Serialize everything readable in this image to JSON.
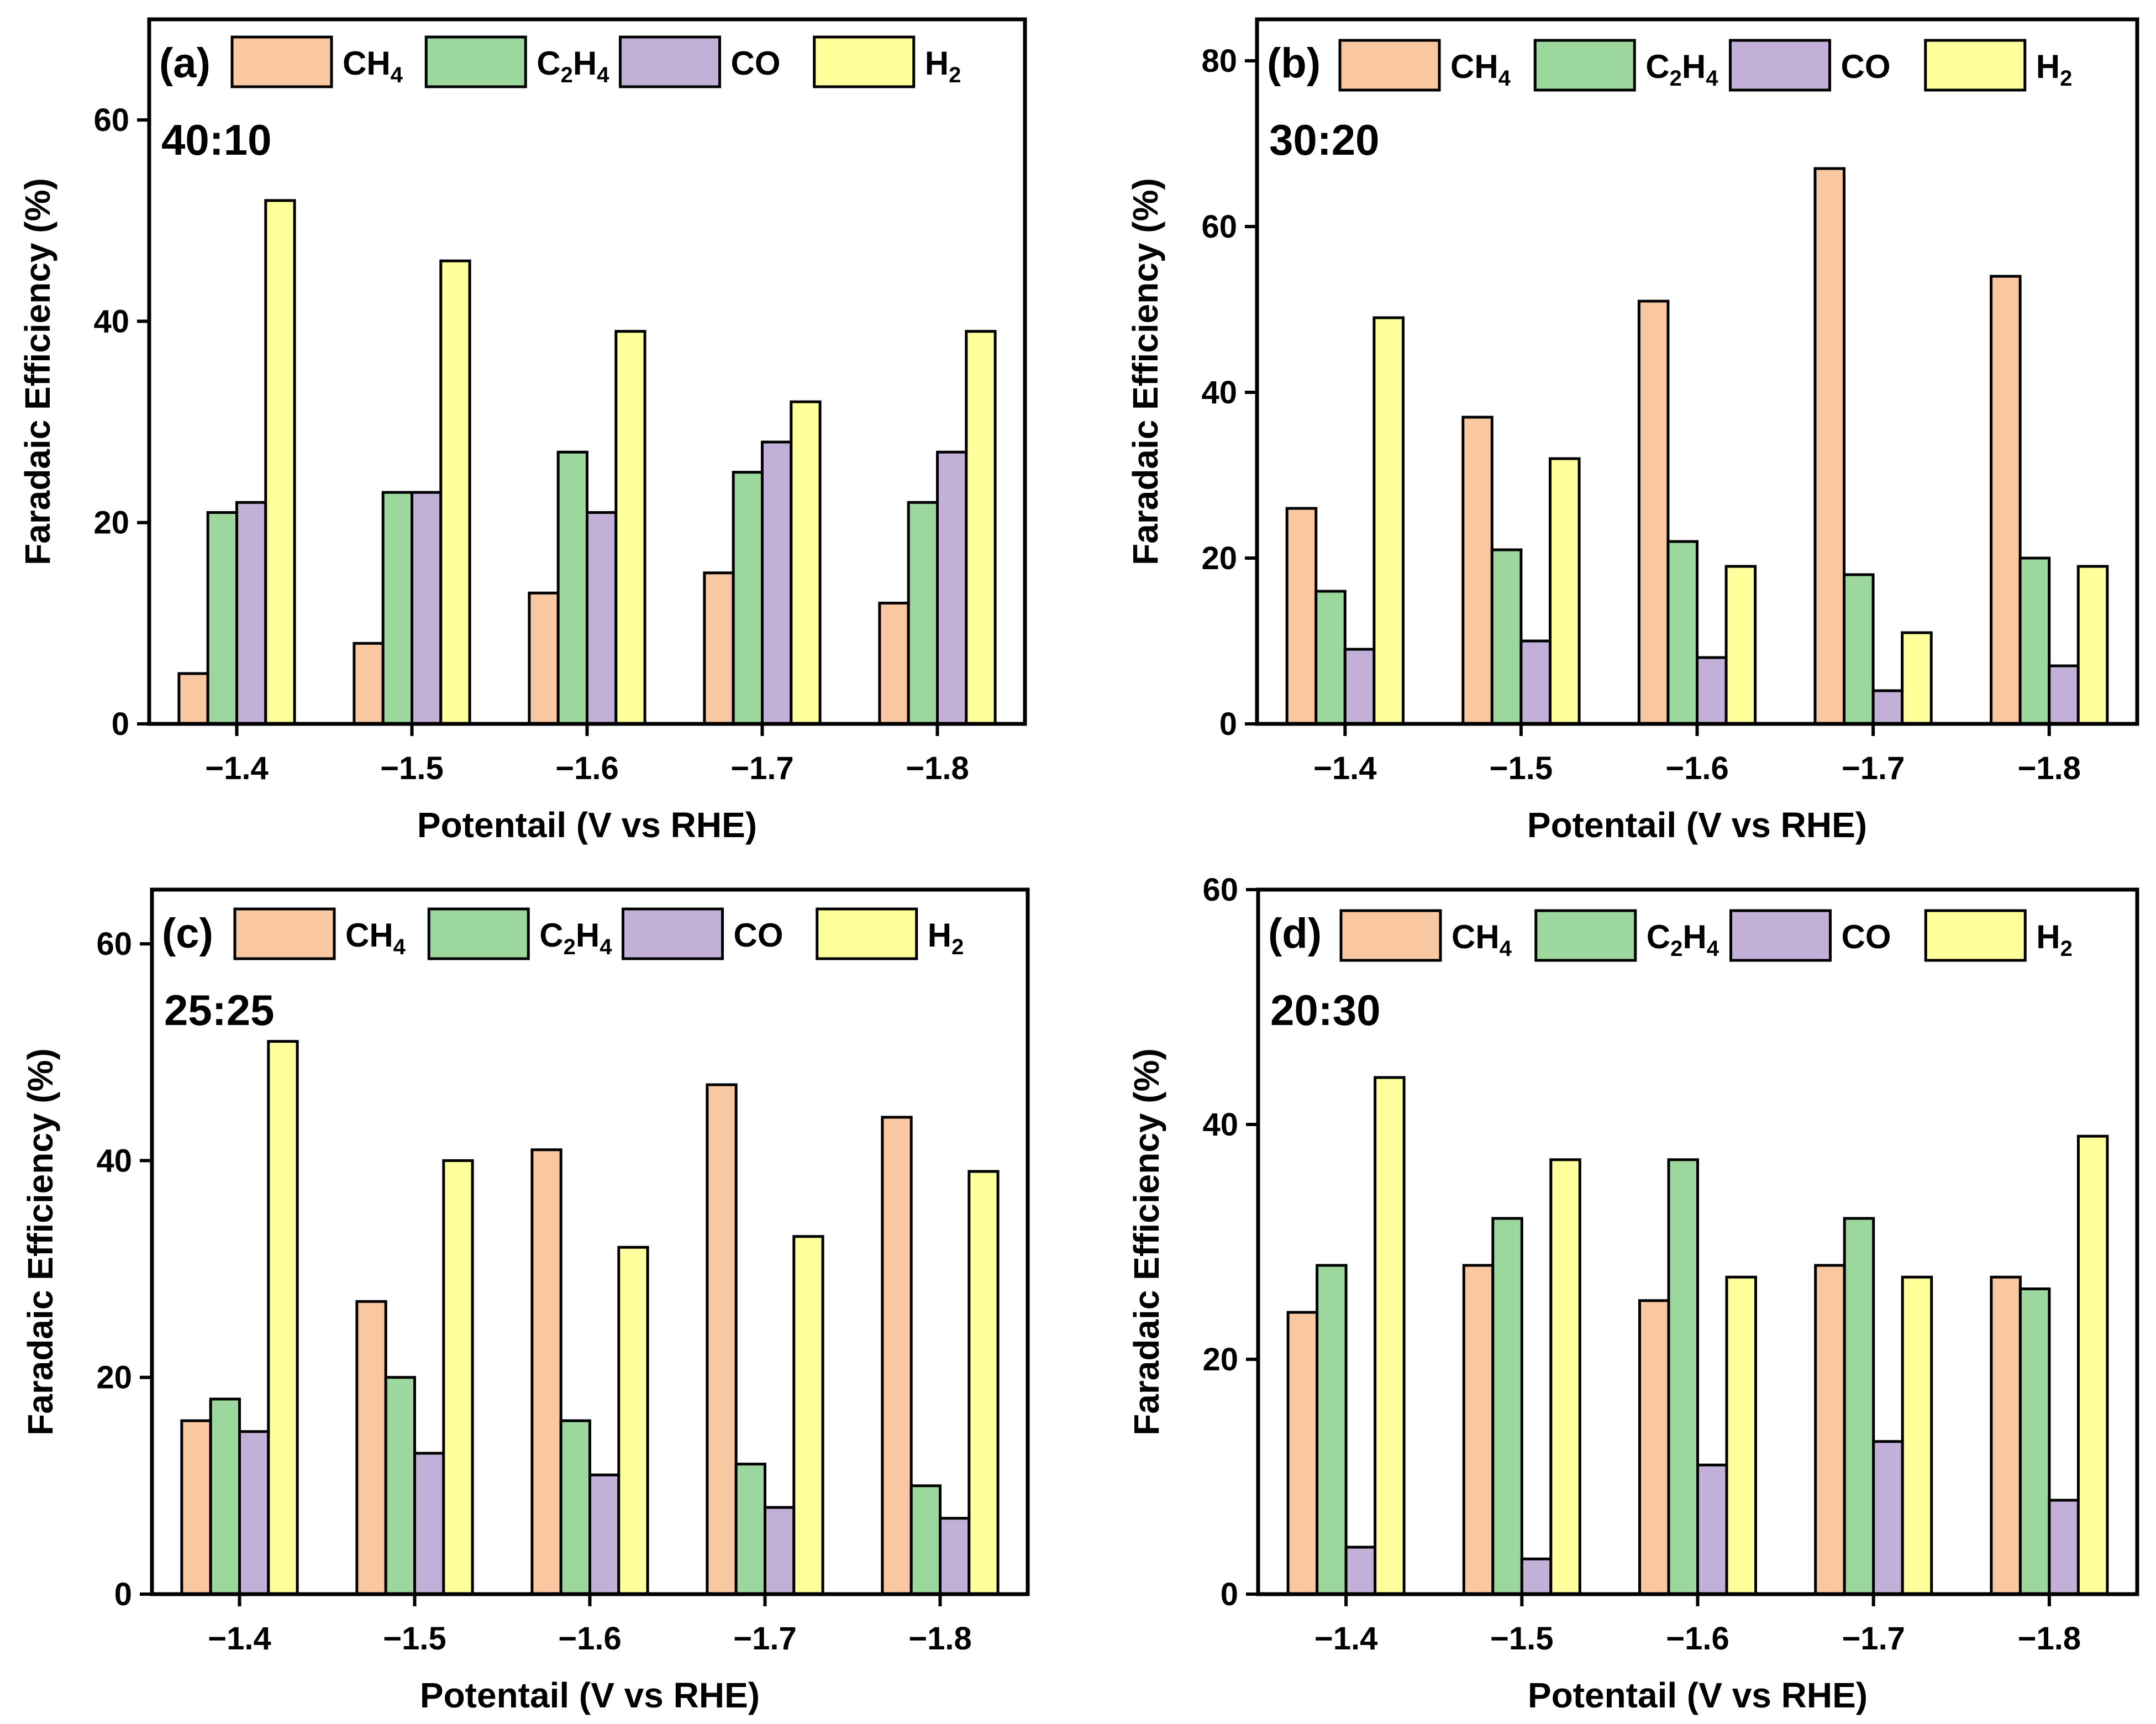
{
  "chart_data": [
    {
      "type": "bar",
      "panel": "(a)",
      "ratio": "40:10",
      "categories": [
        "−1.4",
        "−1.5",
        "−1.6",
        "−1.7",
        "−1.8"
      ],
      "xlabel": "Potentail (V vs RHE)",
      "ylabel": "Faradaic Efficiency (%)",
      "ylim": [
        0,
        70
      ],
      "yticks": [
        "0",
        "20",
        "40",
        "60"
      ],
      "legend_position": "top",
      "series": [
        {
          "name": "CH4",
          "label_base": "CH",
          "label_sub": "4",
          "color": "#FAC8A0",
          "values": [
            5,
            8,
            13,
            15,
            12
          ]
        },
        {
          "name": "C2H4",
          "label_base": "C",
          "label_sub": "2",
          "label_mid": "H",
          "label_sub2": "4",
          "color": "#9CD89E",
          "values": [
            21,
            23,
            27,
            25,
            22
          ]
        },
        {
          "name": "CO",
          "label_base": "CO",
          "color": "#C3B0D8",
          "values": [
            22,
            23,
            21,
            28,
            27
          ]
        },
        {
          "name": "H2",
          "label_base": "H",
          "label_sub": "2",
          "color": "#FFFF9C",
          "values": [
            52,
            46,
            39,
            32,
            39
          ]
        }
      ]
    },
    {
      "type": "bar",
      "panel": "(b)",
      "ratio": "30:20",
      "categories": [
        "−1.4",
        "−1.5",
        "−1.6",
        "−1.7",
        "−1.8"
      ],
      "xlabel": "Potentail (V vs RHE)",
      "ylabel": "Faradaic Efficiency (%)",
      "ylim": [
        0,
        85
      ],
      "yticks": [
        "0",
        "20",
        "40",
        "60",
        "80"
      ],
      "legend_position": "top",
      "series": [
        {
          "name": "CH4",
          "label_base": "CH",
          "label_sub": "4",
          "color": "#FAC8A0",
          "values": [
            26,
            37,
            51,
            67,
            54
          ]
        },
        {
          "name": "C2H4",
          "label_base": "C",
          "label_sub": "2",
          "label_mid": "H",
          "label_sub2": "4",
          "color": "#9CD89E",
          "values": [
            16,
            21,
            22,
            18,
            20
          ]
        },
        {
          "name": "CO",
          "label_base": "CO",
          "color": "#C3B0D8",
          "values": [
            9,
            10,
            8,
            4,
            7
          ]
        },
        {
          "name": "H2",
          "label_base": "H",
          "label_sub": "2",
          "color": "#FFFF9C",
          "values": [
            49,
            32,
            19,
            11,
            19
          ]
        }
      ]
    },
    {
      "type": "bar",
      "panel": "(c)",
      "ratio": "25:25",
      "categories": [
        "−1.4",
        "−1.5",
        "−1.6",
        "−1.7",
        "−1.8"
      ],
      "xlabel": "Potentail (V vs RHE)",
      "ylabel": "Faradaic Efficiency (%)",
      "ylim": [
        0,
        65
      ],
      "yticks": [
        "0",
        "20",
        "40",
        "60"
      ],
      "legend_position": "top",
      "series": [
        {
          "name": "CH4",
          "label_base": "CH",
          "label_sub": "4",
          "color": "#FAC8A0",
          "values": [
            16,
            27,
            41,
            47,
            44
          ]
        },
        {
          "name": "C2H4",
          "label_base": "C",
          "label_sub": "2",
          "label_mid": "H",
          "label_sub2": "4",
          "color": "#9CD89E",
          "values": [
            18,
            20,
            16,
            12,
            10
          ]
        },
        {
          "name": "CO",
          "label_base": "CO",
          "color": "#C3B0D8",
          "values": [
            15,
            13,
            11,
            8,
            7
          ]
        },
        {
          "name": "H2",
          "label_base": "H",
          "label_sub": "2",
          "color": "#FFFF9C",
          "values": [
            51,
            40,
            32,
            33,
            39
          ]
        }
      ]
    },
    {
      "type": "bar",
      "panel": "(d)",
      "ratio": "20:30",
      "categories": [
        "−1.4",
        "−1.5",
        "−1.6",
        "−1.7",
        "−1.8"
      ],
      "xlabel": "Potentail (V vs RHE)",
      "ylabel": "Faradaic Efficiency (%)",
      "ylim": [
        0,
        60
      ],
      "yticks": [
        "0",
        "20",
        "40",
        "60"
      ],
      "legend_position": "top",
      "series": [
        {
          "name": "CH4",
          "label_base": "CH",
          "label_sub": "4",
          "color": "#FAC8A0",
          "values": [
            24,
            28,
            25,
            28,
            27
          ]
        },
        {
          "name": "C2H4",
          "label_base": "C",
          "label_sub": "2",
          "label_mid": "H",
          "label_sub2": "4",
          "color": "#9CD89E",
          "values": [
            28,
            32,
            37,
            32,
            26
          ]
        },
        {
          "name": "CO",
          "label_base": "CO",
          "color": "#C3B0D8",
          "values": [
            4,
            3,
            11,
            13,
            8
          ]
        },
        {
          "name": "H2",
          "label_base": "H",
          "label_sub": "2",
          "color": "#FFFF9C",
          "values": [
            44,
            37,
            27,
            27,
            39
          ]
        }
      ]
    }
  ]
}
